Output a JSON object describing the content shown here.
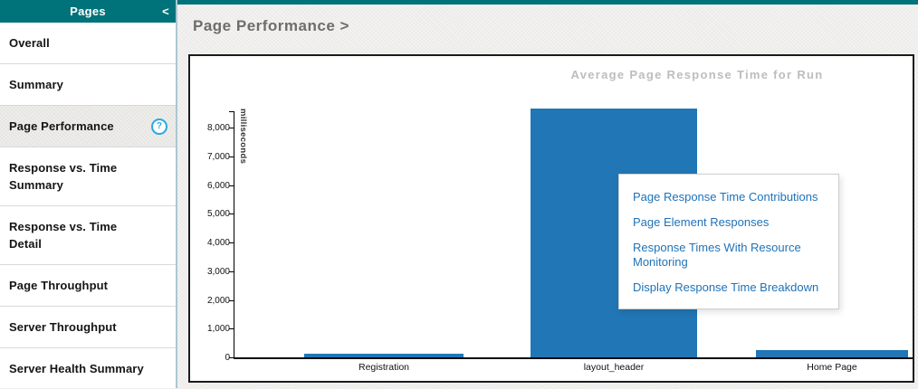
{
  "sidebar": {
    "header": {
      "title": "Pages",
      "collapse_icon": "<"
    },
    "help_icon_glyph": "?",
    "items": [
      {
        "label": "Overall",
        "selected": false,
        "has_help": false
      },
      {
        "label": "Summary",
        "selected": false,
        "has_help": false
      },
      {
        "label": "Page Performance",
        "selected": true,
        "has_help": true
      },
      {
        "label": "Response vs. Time Summary",
        "selected": false,
        "has_help": false
      },
      {
        "label": "Response vs. Time Detail",
        "selected": false,
        "has_help": false
      },
      {
        "label": "Page Throughput",
        "selected": false,
        "has_help": false
      },
      {
        "label": "Server Throughput",
        "selected": false,
        "has_help": false
      },
      {
        "label": "Server Health Summary",
        "selected": false,
        "has_help": false
      }
    ]
  },
  "main": {
    "breadcrumb": "Page Performance >"
  },
  "context_menu": {
    "items": [
      "Page Response Time Contributions",
      "Page Element Responses",
      "Response Times With Resource Monitoring",
      "Display Response Time Breakdown"
    ]
  },
  "chart_data": {
    "type": "bar",
    "title": "Average Page Response Time for Run",
    "xlabel": "",
    "ylabel": "milliseconds",
    "categories": [
      "Registration",
      "layout_header",
      "Home Page"
    ],
    "values": [
      160,
      8700,
      290
    ],
    "ylim": [
      0,
      8600
    ],
    "yticks": [
      0,
      1000,
      2000,
      3000,
      4000,
      5000,
      6000,
      7000,
      8000
    ],
    "grid": false,
    "legend": false,
    "bar_color": "#2176b5"
  },
  "colors": {
    "teal_header": "#00737a",
    "bar_blue": "#2176b5",
    "menu_link_blue": "#1f72b8",
    "help_icon_blue": "#2aa9e0",
    "title_gray": "#6d6d6d",
    "chart_title_gray": "#bdbdbd"
  }
}
